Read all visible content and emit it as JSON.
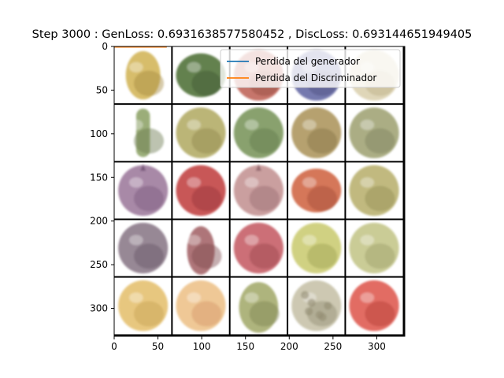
{
  "chart_data": {
    "type": "image_grid_with_line_plot",
    "title": "Step 3000 : GenLoss: 0.6931638577580452 , DiscLoss: 0.693144651949405",
    "image_extent": {
      "x": [
        0,
        332
      ],
      "y": [
        332,
        0
      ]
    },
    "x_ticks": [
      0,
      50,
      100,
      150,
      200,
      250,
      300
    ],
    "y_ticks": [
      0,
      50,
      100,
      150,
      200,
      250,
      300
    ],
    "grid": {
      "rows": 5,
      "cols": 5,
      "cell_size": 66,
      "line_width": 2
    },
    "legend": {
      "position": "upper-right"
    },
    "series": [
      {
        "name": "Perdida del generador",
        "color": "#1f77b4",
        "x": [
          0,
          60
        ],
        "y": [
          0.6931638577580452,
          0.6931638577580452
        ]
      },
      {
        "name": "Perdida del Discriminador",
        "color": "#ff7f0e",
        "x": [
          0,
          60
        ],
        "y": [
          0.693144651949405,
          0.693144651949405
        ]
      }
    ],
    "tiles": [
      {
        "shape": "gooseberry",
        "fill": "#d4b85e",
        "accent": "#9e8034"
      },
      {
        "shape": "pepper",
        "fill": "#56773f",
        "accent": "#2f4a22"
      },
      {
        "shape": "round",
        "fill": "#c26a5e",
        "accent": "#8c3a32"
      },
      {
        "shape": "round",
        "fill": "#6a6ea8",
        "accent": "#3d4276"
      },
      {
        "shape": "round",
        "fill": "#ddd3b3",
        "accent": "#b6a87c"
      },
      {
        "shape": "cucumber",
        "fill": "#93a76e",
        "accent": "#5d6f3f"
      },
      {
        "shape": "round",
        "fill": "#b6af6c",
        "accent": "#857d3f"
      },
      {
        "shape": "round",
        "fill": "#7f9a62",
        "accent": "#566e3d"
      },
      {
        "shape": "kiwi",
        "fill": "#b09a63",
        "accent": "#7c6837"
      },
      {
        "shape": "round",
        "fill": "#a4a77a",
        "accent": "#747850"
      },
      {
        "shape": "onion",
        "fill": "#a17fa0",
        "accent": "#6f4e72"
      },
      {
        "shape": "round",
        "fill": "#c4484a",
        "accent": "#8e2628"
      },
      {
        "shape": "onion",
        "fill": "#c69797",
        "accent": "#8e5f66"
      },
      {
        "shape": "pepper",
        "fill": "#d26c4c",
        "accent": "#9c3f25"
      },
      {
        "shape": "round",
        "fill": "#bcb474",
        "accent": "#8a8246"
      },
      {
        "shape": "round",
        "fill": "#8f7e8d",
        "accent": "#5b4a5c"
      },
      {
        "shape": "teardrop",
        "fill": "#a86a6e",
        "accent": "#74393e"
      },
      {
        "shape": "round",
        "fill": "#c8646c",
        "accent": "#90363e"
      },
      {
        "shape": "round",
        "fill": "#cdce78",
        "accent": "#979a44"
      },
      {
        "shape": "round",
        "fill": "#c6c88e",
        "accent": "#93955a"
      },
      {
        "shape": "round",
        "fill": "#e6c374",
        "accent": "#c29a46"
      },
      {
        "shape": "round",
        "fill": "#eec48e",
        "accent": "#d18e5a"
      },
      {
        "shape": "avocado",
        "fill": "#a8ae72",
        "accent": "#747a44"
      },
      {
        "shape": "cherimoya",
        "fill": "#c9c4ac",
        "accent": "#8a8468"
      },
      {
        "shape": "round",
        "fill": "#e06056",
        "accent": "#ac3028"
      }
    ]
  }
}
